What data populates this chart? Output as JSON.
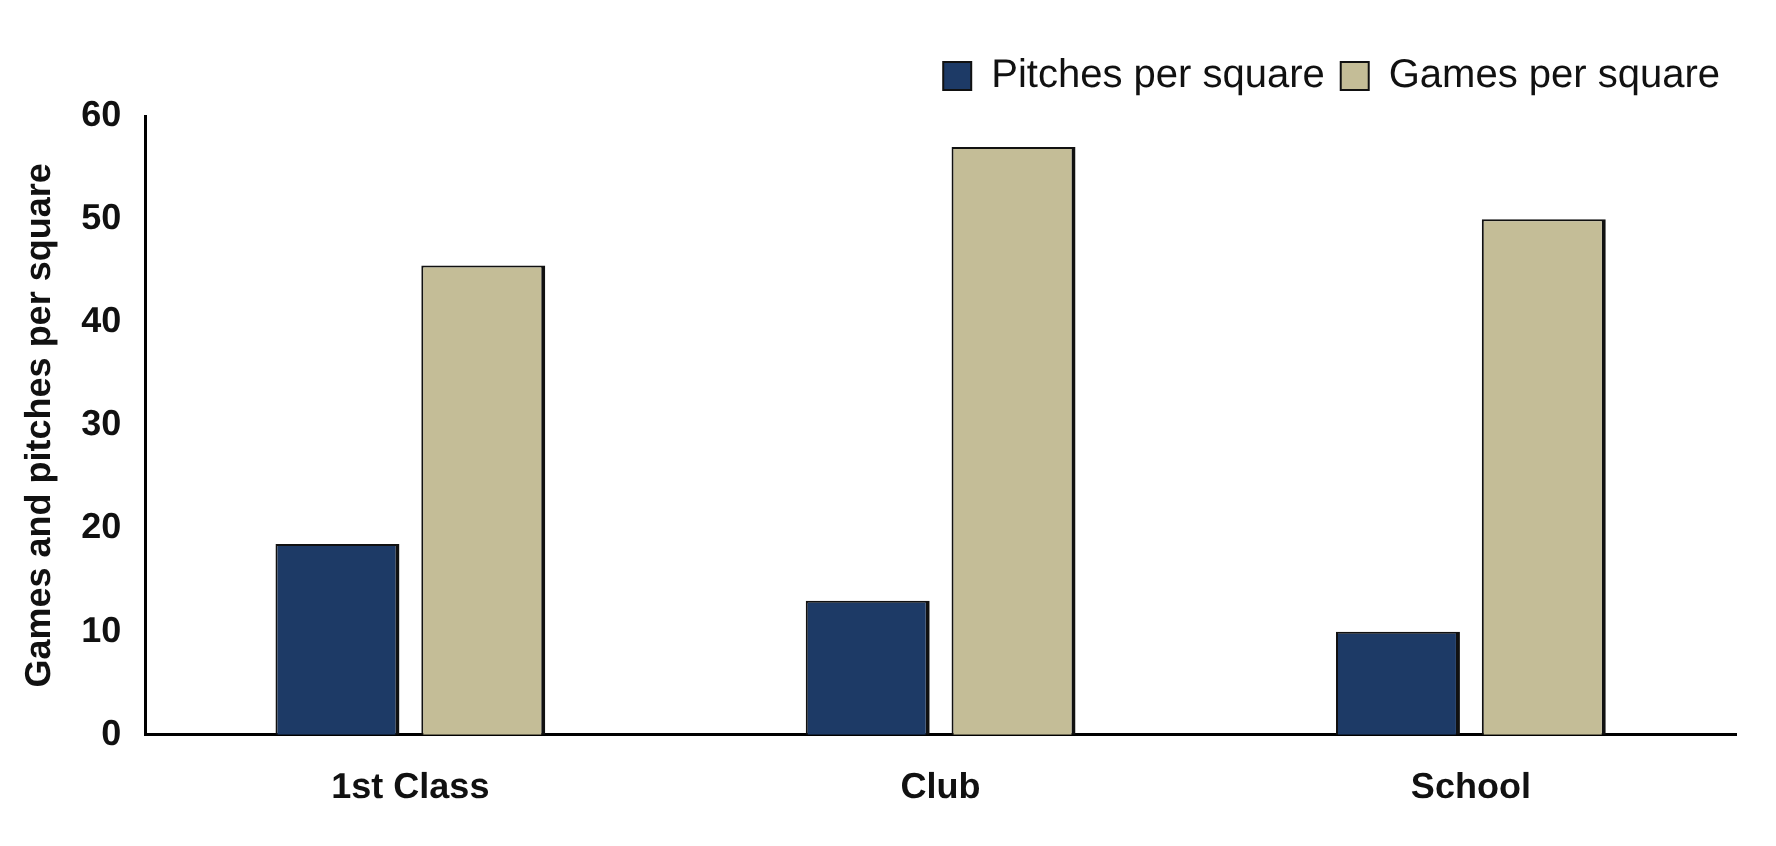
{
  "chart_data": {
    "type": "bar",
    "ylabel": "Games and pitches per square",
    "categories": [
      "1st Class",
      "Club",
      "School"
    ],
    "series": [
      {
        "name": "Pitches per square",
        "color": "#1d3a66",
        "values": [
          18.5,
          13,
          10
        ]
      },
      {
        "name": "Games per square",
        "color": "#c4bd97",
        "values": [
          45.5,
          57,
          50
        ]
      }
    ],
    "ylim": [
      0,
      60
    ],
    "yticks": [
      0,
      10,
      20,
      30,
      40,
      50,
      60
    ],
    "grid": false,
    "legend": "top right"
  }
}
